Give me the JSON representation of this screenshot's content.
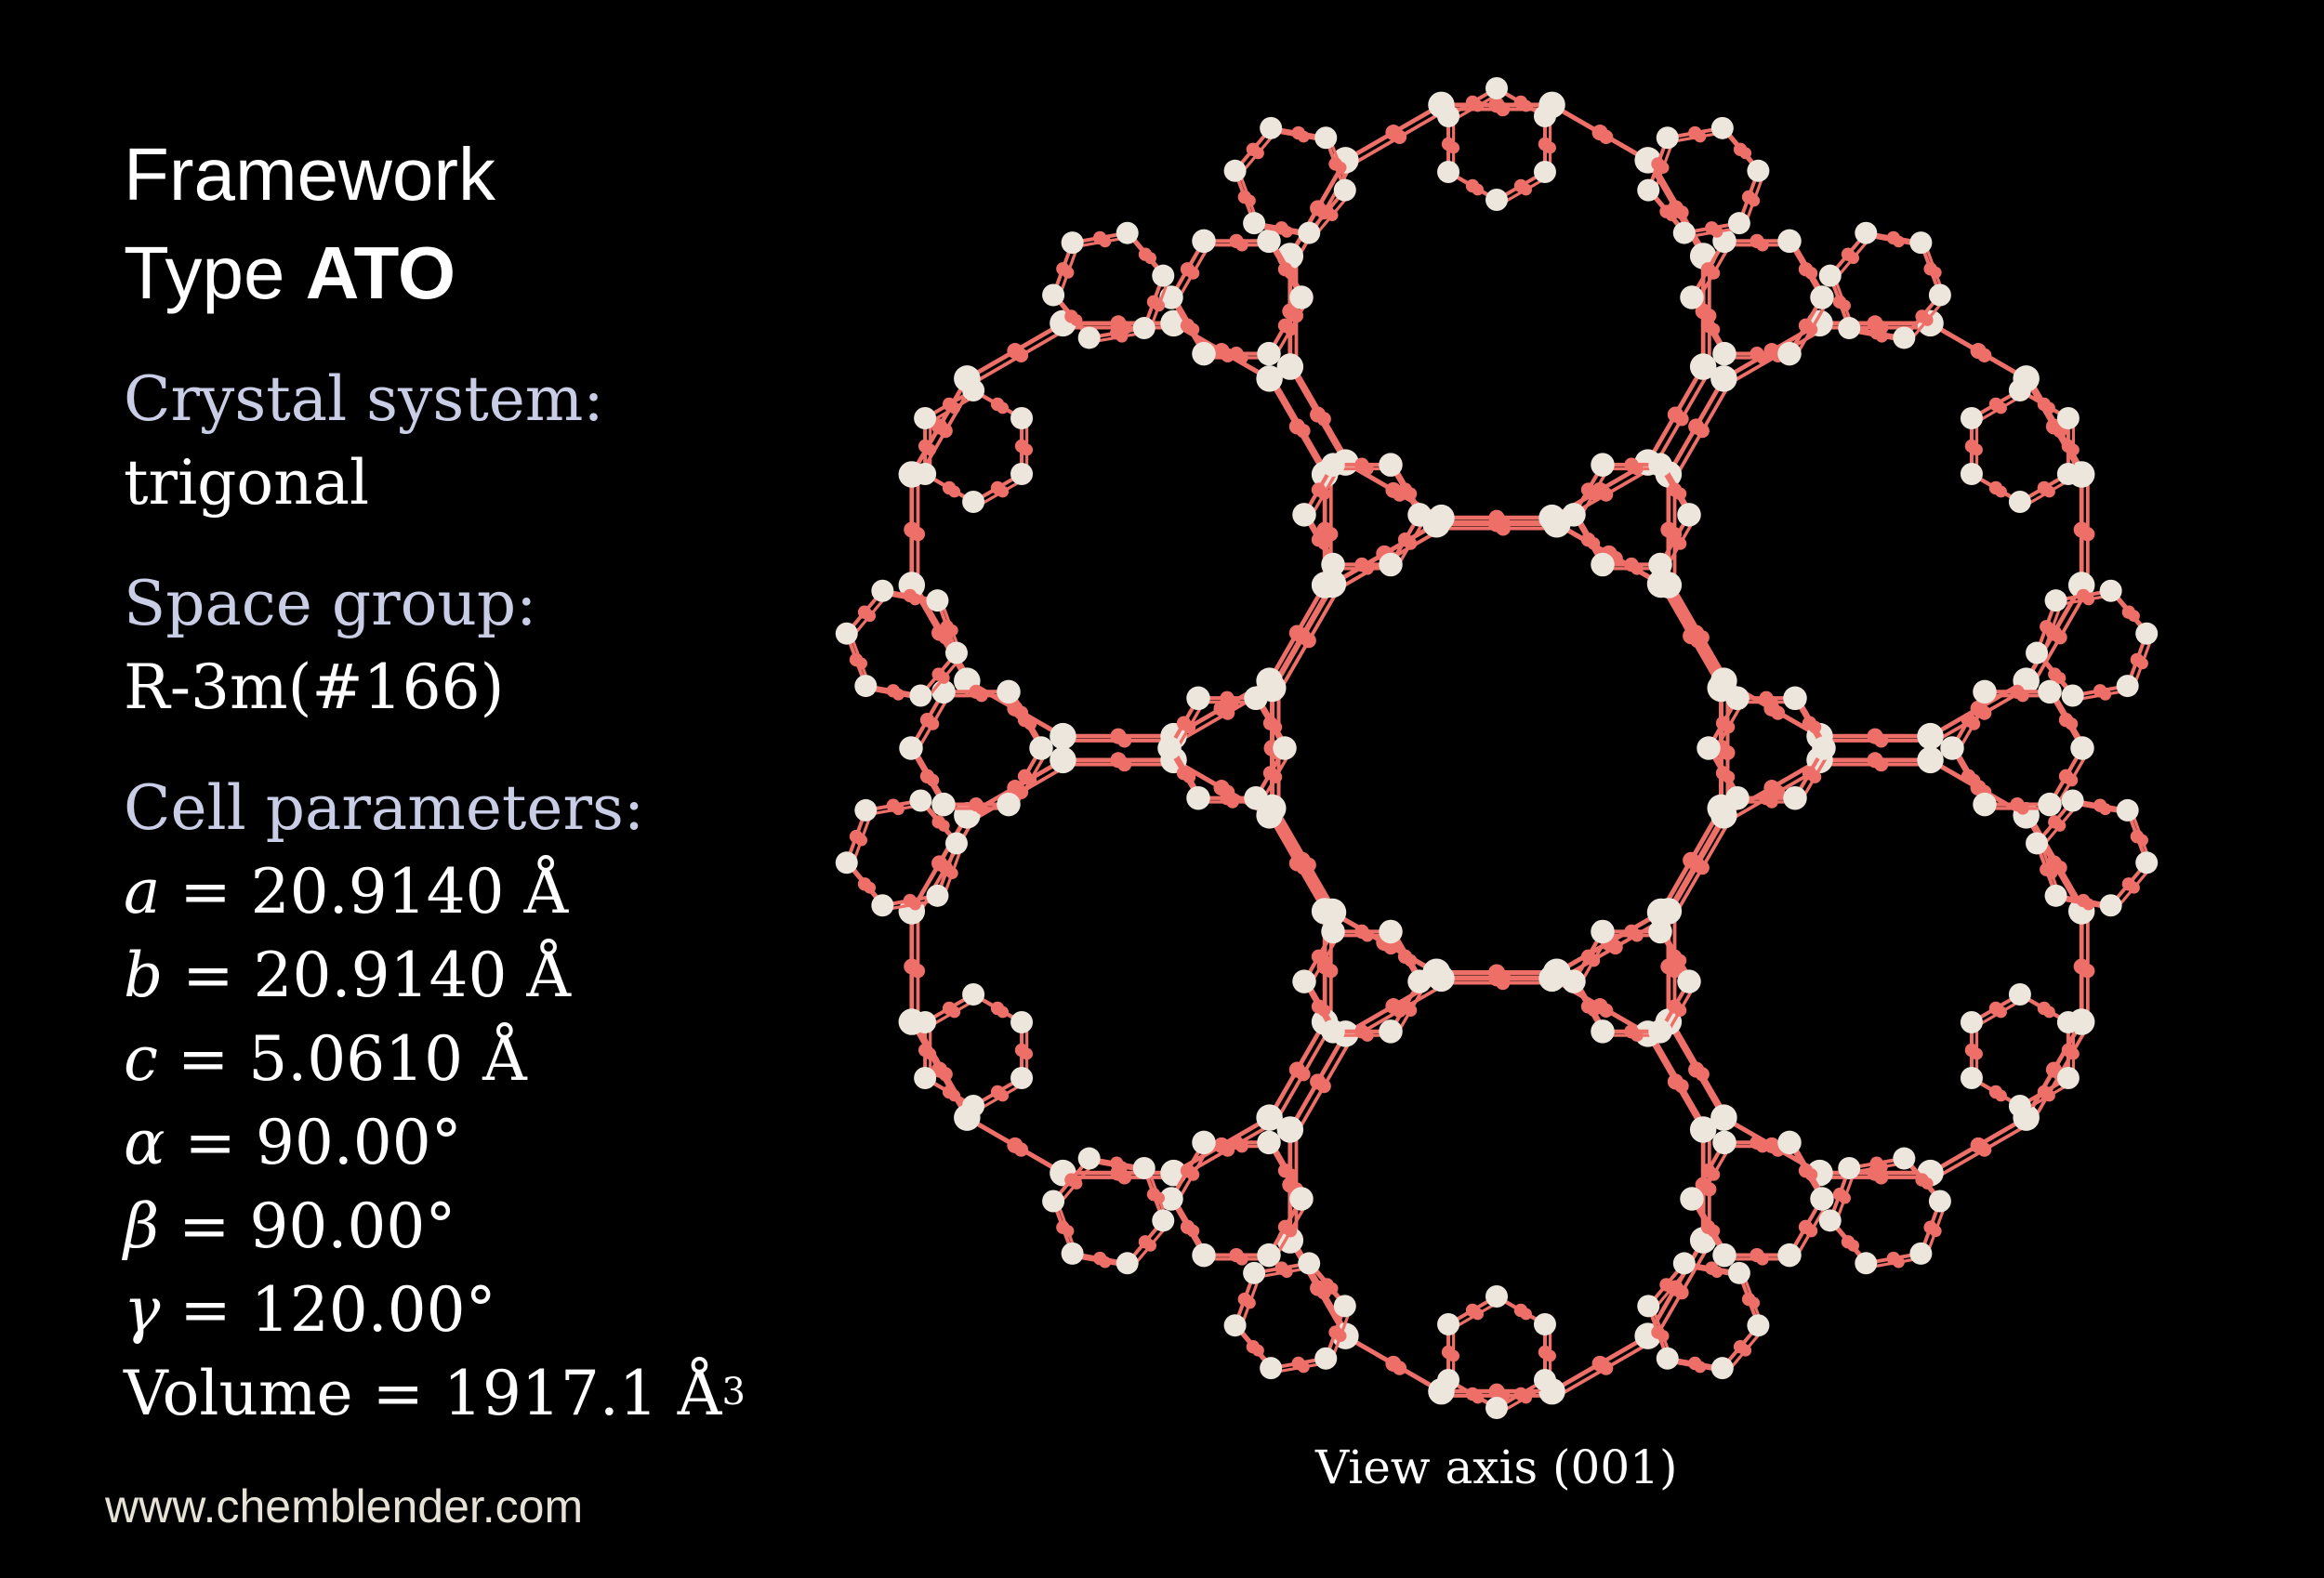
{
  "title": {
    "line1": "Framework",
    "line2_prefix": "Type",
    "line2_code": "ATO"
  },
  "crystal_system": {
    "label": "Crystal system:",
    "value": "trigonal"
  },
  "space_group": {
    "label": "Space group:",
    "value": "R-3m(#166)"
  },
  "cell": {
    "label": "Cell parameters:",
    "params": [
      {
        "symbol": "a",
        "text": " = 20.9140 Å"
      },
      {
        "symbol": "b",
        "text": " = 20.9140 Å"
      },
      {
        "symbol": "c",
        "text": " = 5.0610 Å"
      },
      {
        "symbol": "α",
        "text": " = 90.00°"
      },
      {
        "symbol": "β",
        "text": " = 90.00°"
      },
      {
        "symbol": "γ",
        "text": " = 120.00°"
      }
    ],
    "volume": {
      "text": "Volume = 1917.1 Å",
      "exponent": "3"
    }
  },
  "caption": "View axis (001)",
  "url": "www.chemblender.com",
  "colors": {
    "oxygen": "#ee6f68",
    "tetrahedral_atom": "#ece6dc",
    "background": "#000000"
  }
}
